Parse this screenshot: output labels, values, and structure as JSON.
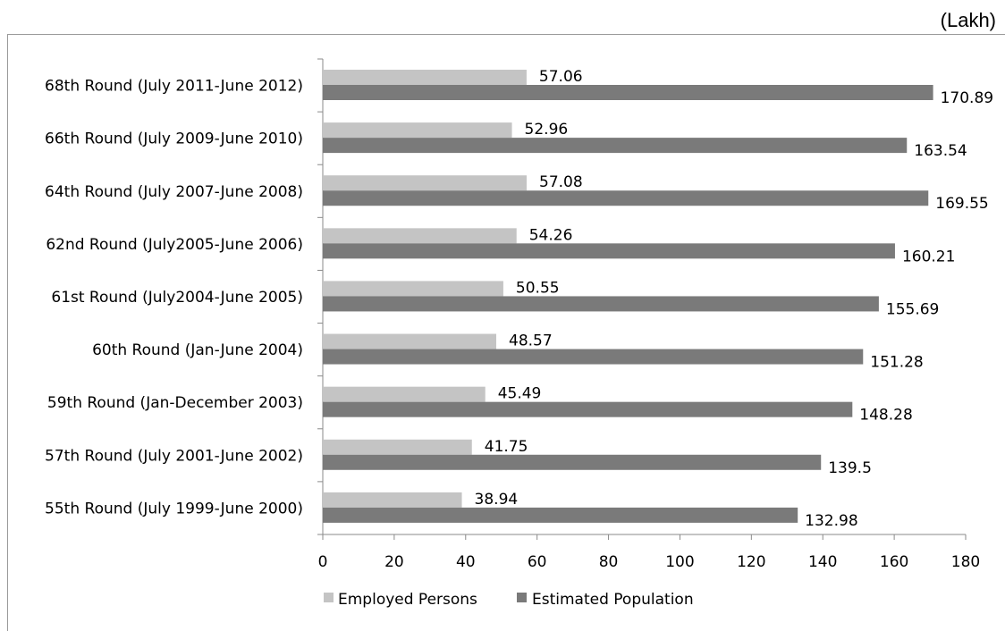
{
  "unit_label": "(Lakh)",
  "chart_data": {
    "type": "bar",
    "orientation": "horizontal",
    "categories": [
      "68th Round (July 2011-June 2012)",
      "66th Round (July 2009-June 2010)",
      "64th Round (July 2007-June 2008)",
      "62nd Round (July2005-June 2006)",
      "61st Round (July2004-June 2005)",
      "60th Round (Jan-June 2004)",
      "59th Round (Jan-December 2003)",
      "57th Round (July 2001-June 2002)",
      "55th Round (July 1999-June 2000)"
    ],
    "series": [
      {
        "name": "Employed Persons",
        "color": "#c4c4c4",
        "values": [
          57.06,
          52.96,
          57.08,
          54.26,
          50.55,
          48.57,
          45.49,
          41.75,
          38.94
        ],
        "labels": [
          "57.06",
          "52.96",
          "57.08",
          "54.26",
          "50.55",
          "48.57",
          "45.49",
          "41.75",
          "38.94"
        ]
      },
      {
        "name": "Estimated Population",
        "color": "#7a7a7a",
        "values": [
          170.89,
          163.54,
          169.55,
          160.21,
          155.69,
          151.28,
          148.28,
          139.5,
          132.98
        ],
        "labels": [
          "170.89",
          "163.54",
          "169.55",
          "160.21",
          "155.69",
          "151.28",
          "148.28",
          "139.5",
          "132.98"
        ]
      }
    ],
    "xlim": [
      0,
      180
    ],
    "xticks": [
      0,
      20,
      40,
      60,
      80,
      100,
      120,
      140,
      160,
      180
    ],
    "xtick_labels": [
      "0",
      "20",
      "40",
      "60",
      "80",
      "100",
      "120",
      "140",
      "160",
      "180"
    ],
    "grid": false,
    "legend_position": "bottom"
  }
}
